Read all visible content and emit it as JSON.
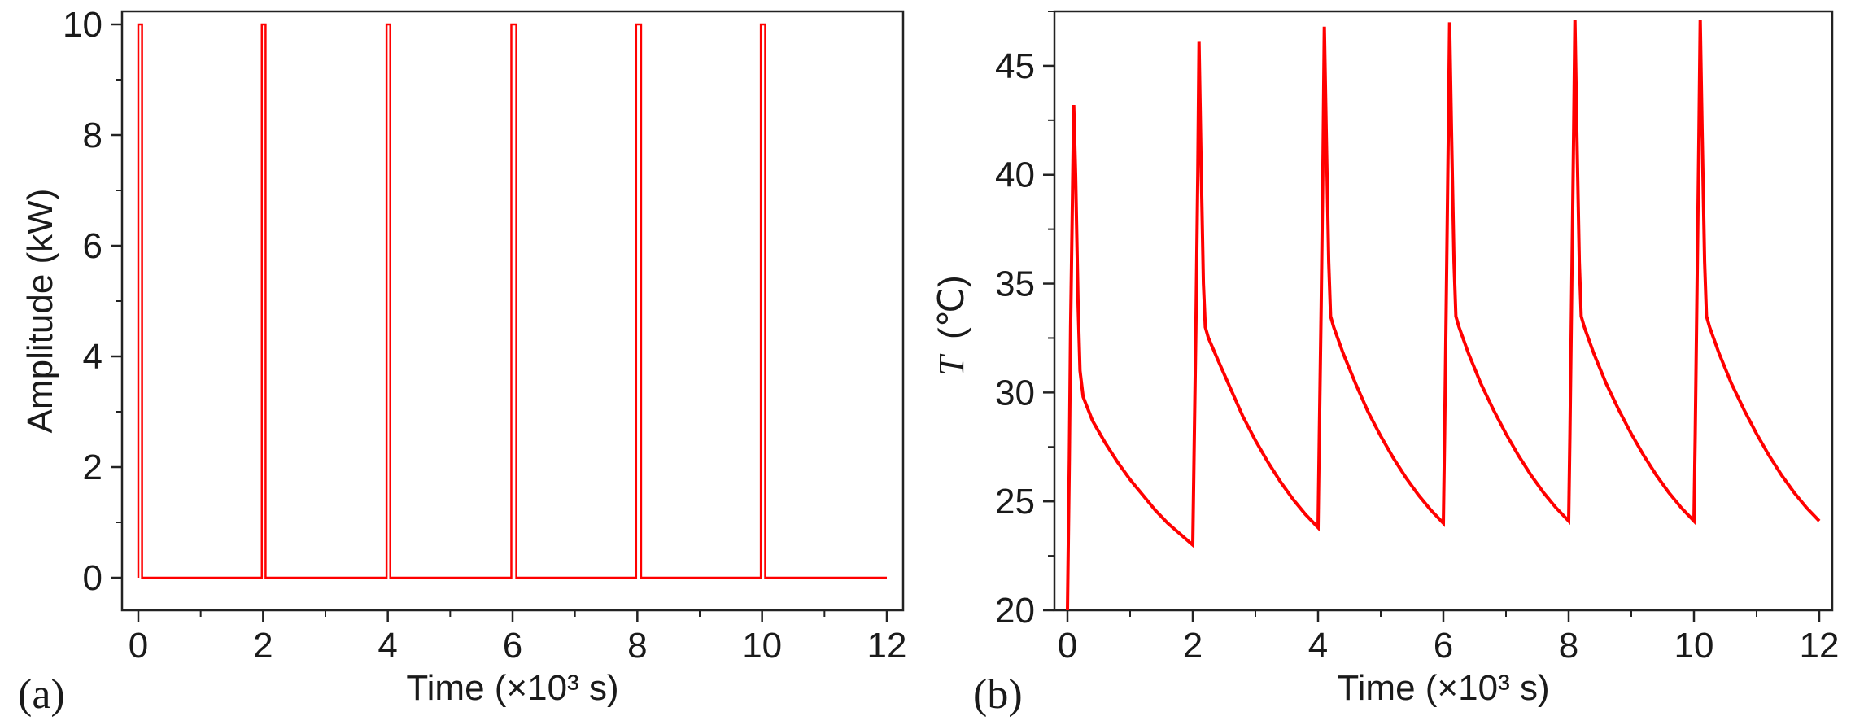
{
  "panels": [
    {
      "label": "(a)",
      "xlabel": "Time (×10³ s)",
      "ylabel": "Amplitude (kW)"
    },
    {
      "label": "(b)",
      "xlabel": "Time (×10³ s)",
      "ylabel_italic": "T",
      "ylabel_unit": "(℃)"
    }
  ],
  "chart_data": [
    {
      "type": "line",
      "title": "",
      "xlabel": "Time (×10³ s)",
      "ylabel": "Amplitude (kW)",
      "xlim": [
        0,
        12
      ],
      "ylim": [
        0,
        10
      ],
      "xticks": [
        0,
        2,
        4,
        6,
        8,
        10,
        12
      ],
      "yticks": [
        0,
        2,
        4,
        6,
        8,
        10
      ],
      "grid": false,
      "color": "#ff0000",
      "series": [
        {
          "x": [
            0,
            0,
            0.06,
            0.06,
            1.98,
            1.98,
            2.04,
            2.04,
            3.98,
            3.98,
            4.04,
            4.04,
            5.98,
            5.98,
            6.06,
            6.06,
            7.98,
            7.98,
            8.06,
            8.06,
            9.98,
            9.98,
            10.05,
            10.05,
            12
          ],
          "y": [
            0,
            10,
            10,
            0,
            0,
            10,
            10,
            0,
            0,
            10,
            10,
            0,
            0,
            10,
            10,
            0,
            0,
            10,
            10,
            0,
            0,
            10,
            10,
            0,
            0
          ]
        }
      ]
    },
    {
      "type": "line",
      "title": "",
      "xlabel": "Time (×10³ s)",
      "ylabel": "T (℃)",
      "xlim": [
        0,
        12
      ],
      "ylim": [
        20,
        47.5
      ],
      "xticks": [
        0,
        2,
        4,
        6,
        8,
        10,
        12
      ],
      "yticks": [
        20,
        25,
        30,
        35,
        40,
        45
      ],
      "grid": false,
      "color": "#ff0000",
      "series": [
        {
          "x": [
            0,
            0.03,
            0.05,
            0.08,
            0.1,
            0.13,
            0.17,
            0.2,
            0.25,
            0.4,
            0.6,
            0.8,
            1.0,
            1.2,
            1.4,
            1.6,
            1.8,
            2.0,
            2.02,
            2.05,
            2.08,
            2.1,
            2.13,
            2.17,
            2.2,
            2.25,
            2.4,
            2.6,
            2.8,
            3.0,
            3.2,
            3.4,
            3.6,
            3.8,
            4.0,
            4.02,
            4.05,
            4.08,
            4.1,
            4.13,
            4.17,
            4.2,
            4.25,
            4.4,
            4.6,
            4.8,
            5.0,
            5.2,
            5.4,
            5.6,
            5.8,
            6.0,
            6.02,
            6.05,
            6.08,
            6.1,
            6.13,
            6.17,
            6.2,
            6.25,
            6.4,
            6.6,
            6.8,
            7.0,
            7.2,
            7.4,
            7.6,
            7.8,
            8.0,
            8.02,
            8.05,
            8.08,
            8.1,
            8.13,
            8.17,
            8.2,
            8.25,
            8.4,
            8.6,
            8.8,
            9.0,
            9.2,
            9.4,
            9.6,
            9.8,
            10.0,
            10.02,
            10.05,
            10.08,
            10.1,
            10.13,
            10.17,
            10.2,
            10.25,
            10.4,
            10.6,
            10.8,
            11.0,
            11.2,
            11.4,
            11.6,
            11.8,
            12.0
          ],
          "y": [
            20,
            27,
            33,
            39,
            43.2,
            40,
            34,
            31,
            29.8,
            28.7,
            27.7,
            26.8,
            26.0,
            25.3,
            24.6,
            24.0,
            23.5,
            23.0,
            27,
            33,
            40,
            46.1,
            41,
            35,
            33,
            32.5,
            31.5,
            30.2,
            28.9,
            27.8,
            26.8,
            25.9,
            25.1,
            24.4,
            23.8,
            28,
            34,
            41,
            46.8,
            42,
            36,
            33.5,
            33,
            31.8,
            30.4,
            29.1,
            28.0,
            27.0,
            26.1,
            25.3,
            24.6,
            24.0,
            28,
            35,
            42,
            47.0,
            42,
            36,
            33.5,
            33,
            31.8,
            30.4,
            29.2,
            28.1,
            27.1,
            26.2,
            25.4,
            24.7,
            24.1,
            28,
            35,
            42,
            47.1,
            42,
            36,
            33.5,
            33,
            31.8,
            30.4,
            29.2,
            28.1,
            27.1,
            26.2,
            25.4,
            24.7,
            24.1,
            28,
            35,
            42,
            47.1,
            42,
            36,
            33.5,
            33,
            31.8,
            30.4,
            29.2,
            28.1,
            27.1,
            26.2,
            25.4,
            24.7,
            24.1
          ]
        }
      ]
    }
  ]
}
